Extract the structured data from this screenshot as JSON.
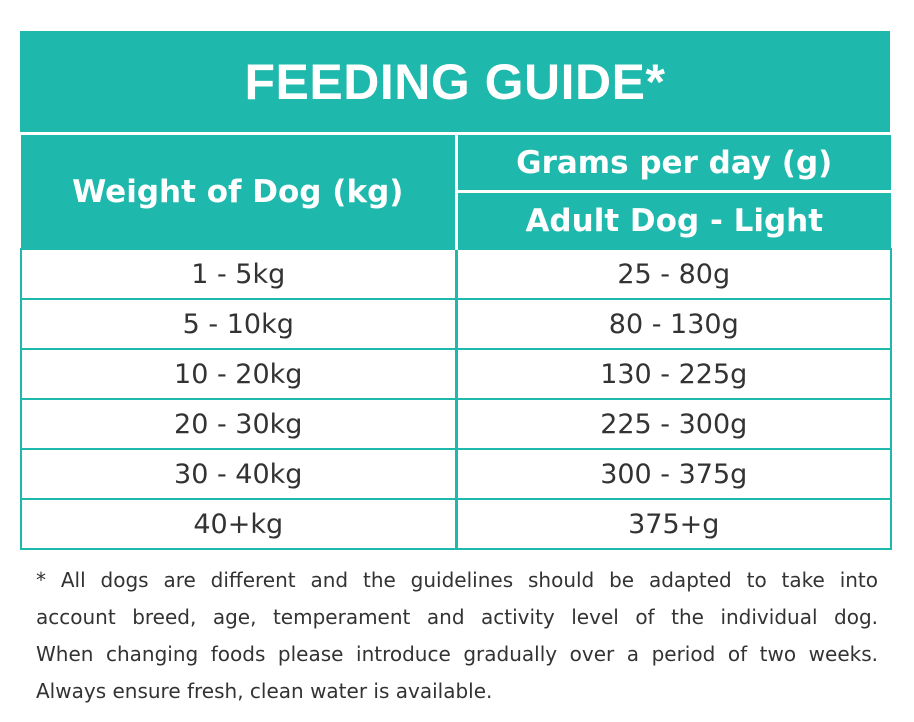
{
  "title": "FEEDING GUIDE*",
  "headers": {
    "weight": "Weight of Dog (kg)",
    "grams": "Grams per day (g)",
    "subtype": "Adult Dog - Light"
  },
  "rows": [
    {
      "weight": "1 - 5kg",
      "grams": "25 - 80g"
    },
    {
      "weight": "5 - 10kg",
      "grams": "80 - 130g"
    },
    {
      "weight": "10 - 20kg",
      "grams": "130 - 225g"
    },
    {
      "weight": "20 - 30kg",
      "grams": "225 - 300g"
    },
    {
      "weight": "30 - 40kg",
      "grams": "300 - 375g"
    },
    {
      "weight": "40+kg",
      "grams": "375+g"
    }
  ],
  "footnote": {
    "lines": [
      "* All dogs are different and the guidelines should be adapted to take into",
      "account breed, age, temperament and activity level of the individual dog.",
      "When changing foods please introduce gradually over a period of two weeks.",
      "Always ensure fresh, clean water is available."
    ]
  },
  "colors": {
    "accent": "#1eb8ac",
    "text": "#333333",
    "header_text": "#ffffff"
  }
}
